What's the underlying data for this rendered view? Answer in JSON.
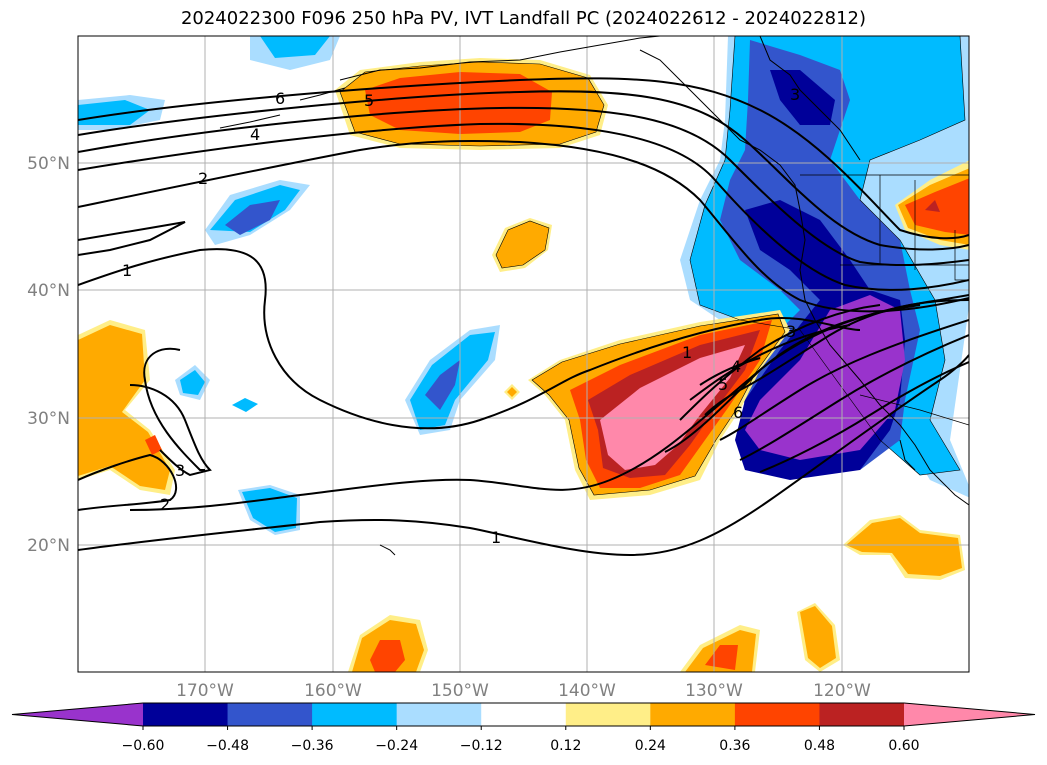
{
  "title": "2024022300 F096 250 hPa PV, IVT Landfall PC (2024022612 - 2024022812)",
  "lat_labels": [
    "50°N",
    "40°N",
    "30°N",
    "20°N"
  ],
  "lon_labels": [
    "170°W",
    "160°W",
    "150°W",
    "140°W",
    "130°W",
    "120°W"
  ],
  "colorbar": {
    "colors": [
      "#9933cc",
      "#000099",
      "#3355cc",
      "#00bbff",
      "#aaddff",
      "#ffffff",
      "#ffee88",
      "#ffaa00",
      "#ff4400",
      "#bb2222",
      "#ff88aa"
    ],
    "tick_labels": [
      "−0.60",
      "−0.48",
      "−0.36",
      "−0.24",
      "−0.12",
      "0.12",
      "0.24",
      "0.36",
      "0.48",
      "0.60"
    ]
  },
  "contour_labels": [
    "6",
    "5",
    "4",
    "2",
    "1",
    "3",
    "2",
    "3",
    "1",
    "1",
    "4",
    "5",
    "6",
    "3"
  ]
}
